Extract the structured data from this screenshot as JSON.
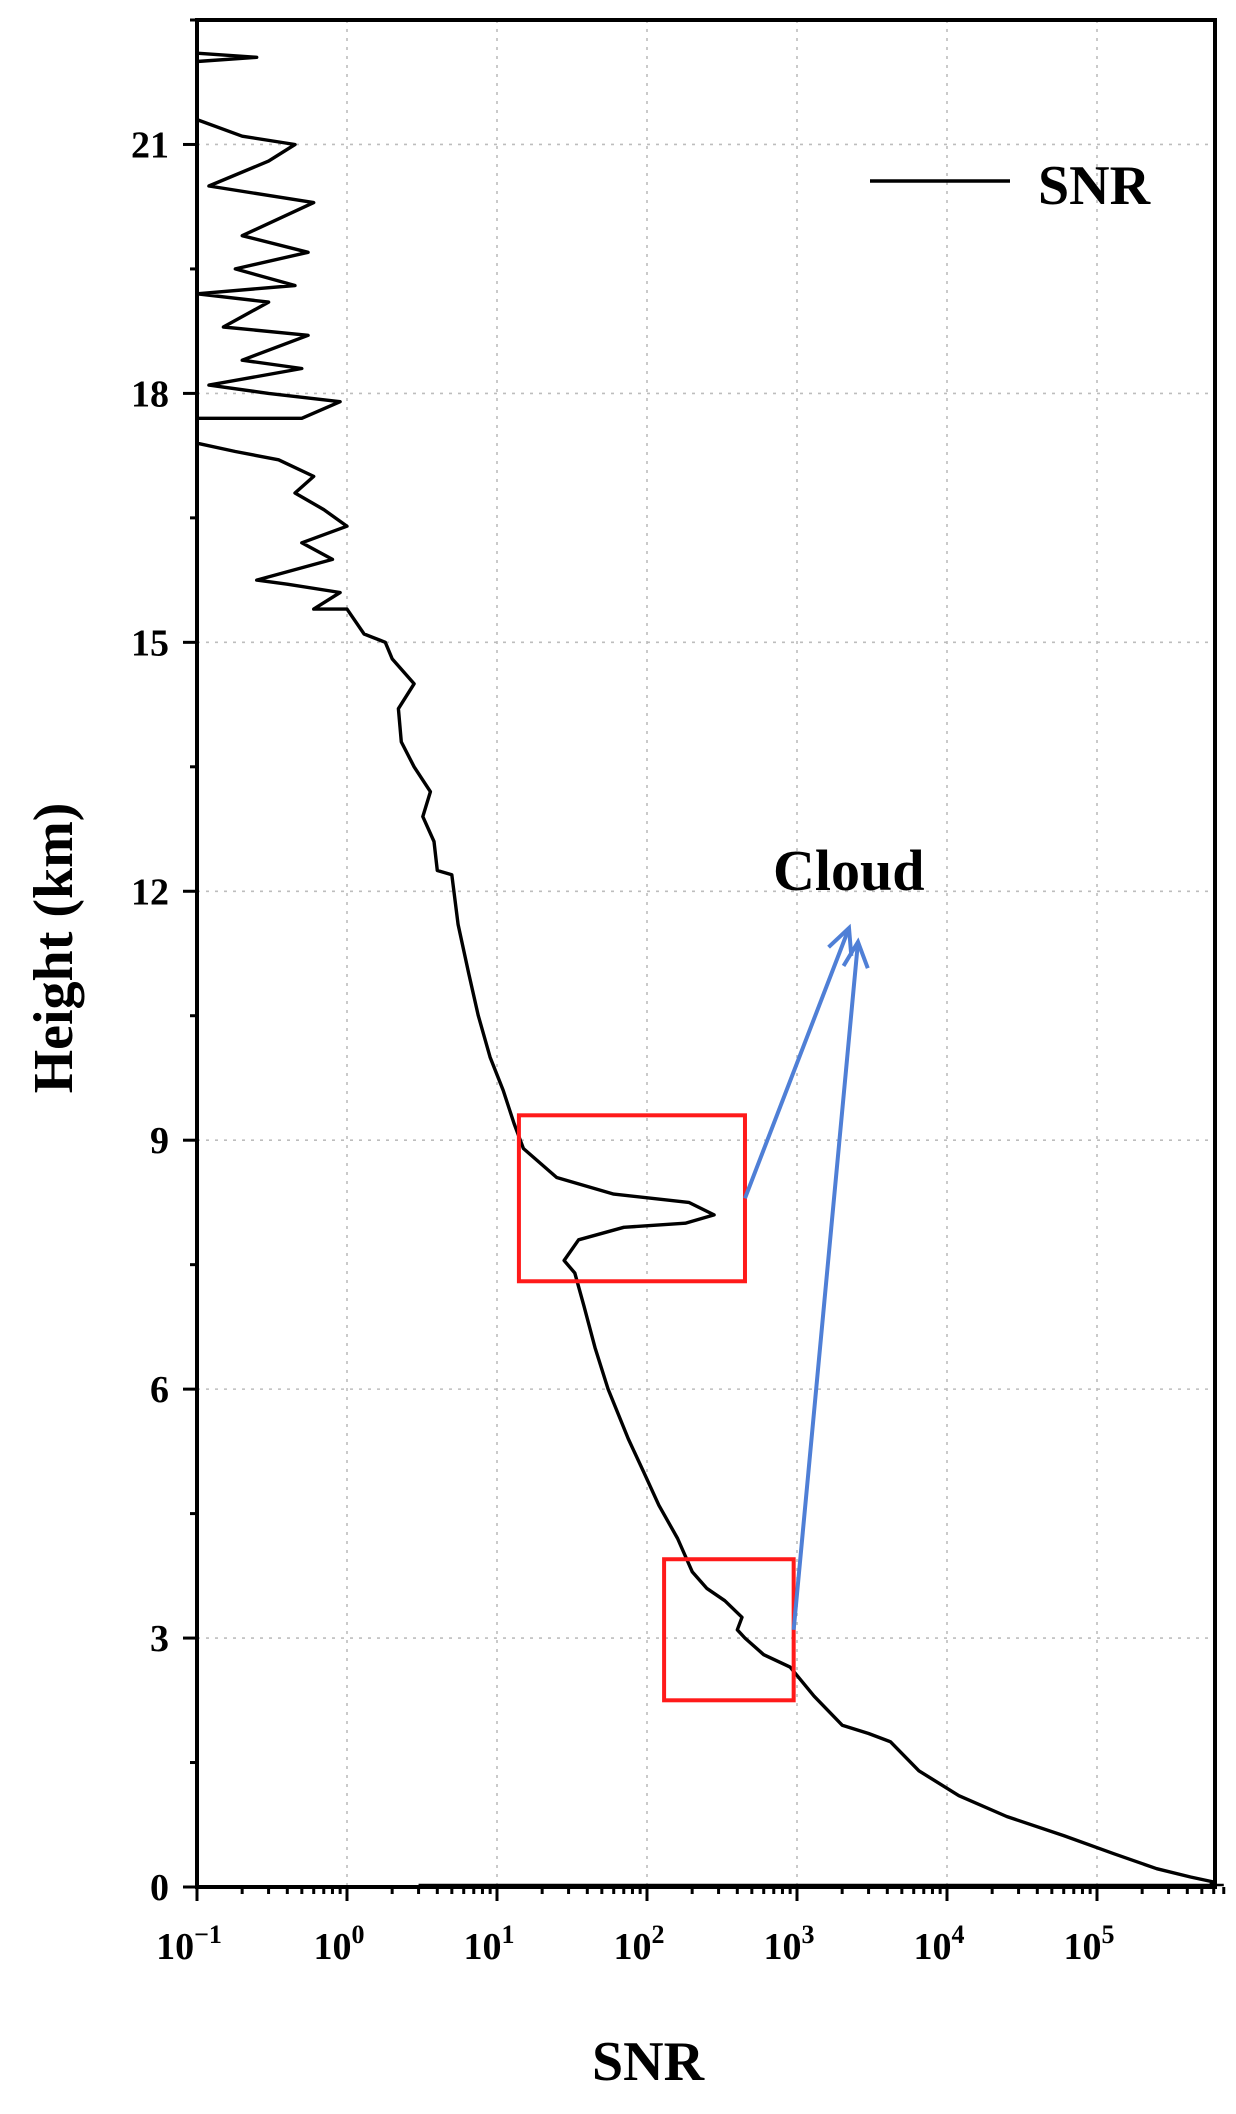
{
  "chart_data": {
    "type": "line",
    "xlabel": "SNR",
    "ylabel": "Height (km)",
    "xscale": "log",
    "xlim": [
      0.1,
      700000
    ],
    "ylim": [
      0,
      22.5
    ],
    "x_ticks": [
      {
        "value": 0.1,
        "base": "10",
        "exp": "−1"
      },
      {
        "value": 1,
        "base": "10",
        "exp": "0"
      },
      {
        "value": 10,
        "base": "10",
        "exp": "1"
      },
      {
        "value": 100,
        "base": "10",
        "exp": "2"
      },
      {
        "value": 1000,
        "base": "10",
        "exp": "3"
      },
      {
        "value": 10000,
        "base": "10",
        "exp": "4"
      },
      {
        "value": 100000,
        "base": "10",
        "exp": "5"
      }
    ],
    "y_ticks": [
      "0",
      "3",
      "6",
      "9",
      "12",
      "15",
      "18",
      "21"
    ],
    "grid": true,
    "legend": {
      "position": "top-right",
      "entries": [
        "SNR"
      ]
    },
    "series": [
      {
        "name": "SNR",
        "color": "#000000",
        "points": [
          [
            550000,
            0.0
          ],
          [
            600000,
            0.06
          ],
          [
            420000,
            0.12
          ],
          [
            250000,
            0.22
          ],
          [
            130000,
            0.4
          ],
          [
            60000,
            0.62
          ],
          [
            25000,
            0.85
          ],
          [
            12000,
            1.1
          ],
          [
            6500,
            1.4
          ],
          [
            4200,
            1.75
          ],
          [
            3000,
            1.85
          ],
          [
            2000,
            1.95
          ],
          [
            1300,
            2.3
          ],
          [
            900,
            2.65
          ],
          [
            600,
            2.8
          ],
          [
            450,
            3.0
          ],
          [
            400,
            3.1
          ],
          [
            430,
            3.25
          ],
          [
            330,
            3.45
          ],
          [
            250,
            3.6
          ],
          [
            200,
            3.8
          ],
          [
            160,
            4.2
          ],
          [
            120,
            4.6
          ],
          [
            95,
            5.0
          ],
          [
            75,
            5.4
          ],
          [
            55,
            6.0
          ],
          [
            45,
            6.5
          ],
          [
            38,
            7.0
          ],
          [
            33,
            7.4
          ],
          [
            28,
            7.55
          ],
          [
            35,
            7.8
          ],
          [
            70,
            7.95
          ],
          [
            180,
            8.0
          ],
          [
            280,
            8.1
          ],
          [
            190,
            8.25
          ],
          [
            60,
            8.35
          ],
          [
            25,
            8.55
          ],
          [
            15,
            8.9
          ],
          [
            13,
            9.2
          ],
          [
            11,
            9.6
          ],
          [
            9,
            10.0
          ],
          [
            7.5,
            10.5
          ],
          [
            6.5,
            11.0
          ],
          [
            5.5,
            11.6
          ],
          [
            5.0,
            12.2
          ],
          [
            4.0,
            12.25
          ],
          [
            3.8,
            12.6
          ],
          [
            3.2,
            12.9
          ],
          [
            3.6,
            13.2
          ],
          [
            2.8,
            13.5
          ],
          [
            2.3,
            13.8
          ],
          [
            2.2,
            14.2
          ],
          [
            2.8,
            14.5
          ],
          [
            2.0,
            14.8
          ],
          [
            1.8,
            15.0
          ],
          [
            1.3,
            15.1
          ],
          [
            1.0,
            15.4
          ],
          [
            0.6,
            15.4
          ],
          [
            0.9,
            15.6
          ],
          [
            0.4,
            15.7
          ],
          [
            0.25,
            15.75
          ],
          [
            0.8,
            16.0
          ],
          [
            0.5,
            16.2
          ],
          [
            1.0,
            16.4
          ],
          [
            0.7,
            16.6
          ],
          [
            0.45,
            16.8
          ],
          [
            0.6,
            17.0
          ],
          [
            0.35,
            17.2
          ],
          [
            0.18,
            17.3
          ],
          [
            0.1,
            17.4
          ],
          [
            0.1,
            17.7
          ],
          [
            0.5,
            17.7
          ],
          [
            0.9,
            17.9
          ],
          [
            0.3,
            18.0
          ],
          [
            0.12,
            18.1
          ],
          [
            0.5,
            18.3
          ],
          [
            0.2,
            18.4
          ],
          [
            0.55,
            18.7
          ],
          [
            0.15,
            18.8
          ],
          [
            0.3,
            19.1
          ],
          [
            0.1,
            19.2
          ],
          [
            0.45,
            19.3
          ],
          [
            0.18,
            19.5
          ],
          [
            0.55,
            19.7
          ],
          [
            0.2,
            19.9
          ],
          [
            0.6,
            20.3
          ],
          [
            0.12,
            20.5
          ],
          [
            0.3,
            20.8
          ],
          [
            0.45,
            21.0
          ],
          [
            0.2,
            21.1
          ],
          [
            0.1,
            21.3
          ],
          [
            0.1,
            22.0
          ],
          [
            0.25,
            22.05
          ],
          [
            0.1,
            22.1
          ]
        ]
      }
    ],
    "annotations": {
      "text": "Cloud",
      "boxes": [
        {
          "x_range": [
            14,
            450
          ],
          "y_range": [
            7.3,
            9.3
          ]
        },
        {
          "x_range": [
            130,
            950
          ],
          "y_range": [
            2.25,
            3.95
          ]
        }
      ],
      "arrow_color": "#4f7fd6",
      "box_color": "#ff1a1a"
    }
  }
}
